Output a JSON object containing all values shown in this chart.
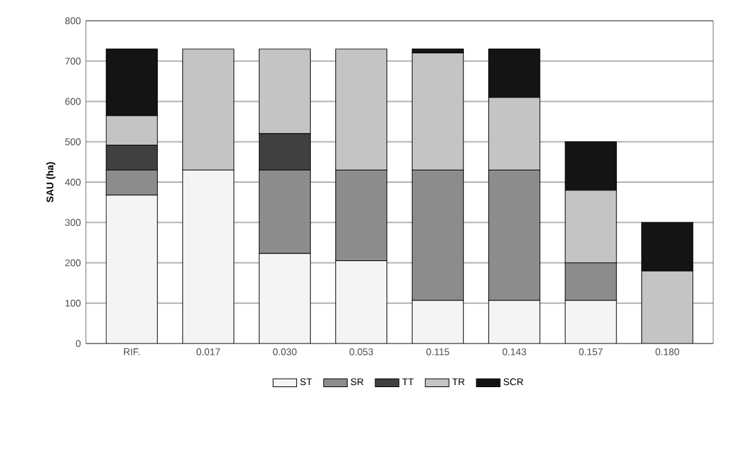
{
  "chart_data": {
    "type": "bar",
    "stacked": true,
    "ylabel": "SAU (ha)",
    "categories": [
      "RIF.",
      "0.017",
      "0.030",
      "0.053",
      "0.115",
      "0.143",
      "0.157",
      "0.180"
    ],
    "series": [
      {
        "name": "ST",
        "color": "#f4f4f4",
        "values": [
          368,
          430,
          223,
          205,
          107,
          107,
          107,
          0
        ]
      },
      {
        "name": "SR",
        "color": "#8c8c8c",
        "values": [
          62,
          0,
          207,
          225,
          323,
          323,
          93,
          0
        ]
      },
      {
        "name": "TT",
        "color": "#404040",
        "values": [
          62,
          0,
          90,
          0,
          0,
          0,
          0,
          0
        ]
      },
      {
        "name": "TR",
        "color": "#c4c4c4",
        "values": [
          73,
          300,
          210,
          300,
          290,
          180,
          180,
          180
        ]
      },
      {
        "name": "SCR",
        "color": "#141414",
        "values": [
          165,
          0,
          0,
          0,
          10,
          120,
          120,
          120
        ]
      }
    ],
    "ylim": [
      0,
      800
    ],
    "yticks": [
      0,
      100,
      200,
      300,
      400,
      500,
      600,
      700,
      800
    ],
    "grid": "y",
    "legend": "bottom"
  }
}
